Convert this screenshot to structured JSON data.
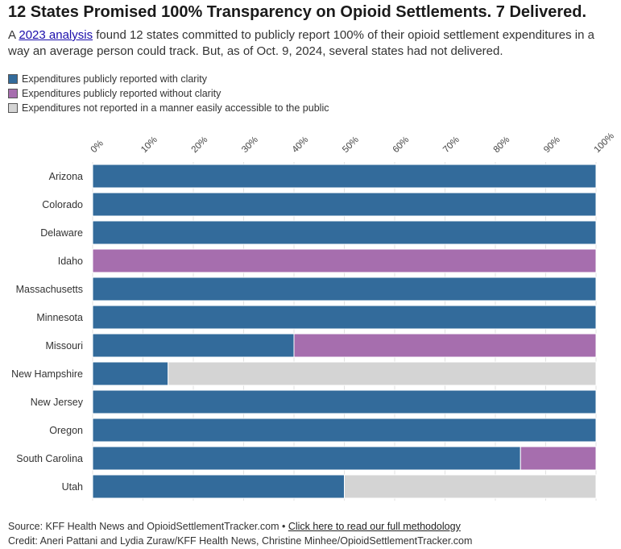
{
  "header": {
    "title": "12 States Promised 100% Transparency on Opioid Settlements. 7 Delivered.",
    "subtitle_before": "A ",
    "subtitle_link": "2023 analysis",
    "subtitle_after": " found 12 states committed to publicly report 100% of their opioid settlement expenditures in a way an average person could track. But, as of Oct. 9, 2024, several states had not delivered."
  },
  "legend": [
    {
      "label": "Expenditures publicly reported with clarity",
      "color": "#336b9b"
    },
    {
      "label": "Expenditures publicly reported without clarity",
      "color": "#a66eae"
    },
    {
      "label": "Expenditures not reported in a manner easily accessible to the public",
      "color": "#d4d4d4"
    }
  ],
  "chart_data": {
    "type": "bar",
    "orientation": "horizontal",
    "stacked": true,
    "x_axis_position": "top",
    "xlim": [
      0,
      100
    ],
    "x_ticks": [
      "0%",
      "10%",
      "20%",
      "30%",
      "40%",
      "50%",
      "60%",
      "70%",
      "80%",
      "90%",
      "100%"
    ],
    "categories": [
      "Arizona",
      "Colorado",
      "Delaware",
      "Idaho",
      "Massachusetts",
      "Minnesota",
      "Missouri",
      "New Hampshire",
      "New Jersey",
      "Oregon",
      "South Carolina",
      "Utah"
    ],
    "series": [
      {
        "name": "Expenditures publicly reported with clarity",
        "color": "#336b9b",
        "values": [
          100,
          100,
          100,
          0,
          100,
          100,
          40,
          15,
          100,
          100,
          85,
          50
        ]
      },
      {
        "name": "Expenditures publicly reported without clarity",
        "color": "#a66eae",
        "values": [
          0,
          0,
          0,
          100,
          0,
          0,
          60,
          0,
          0,
          0,
          15,
          0
        ]
      },
      {
        "name": "Expenditures not reported in a manner easily accessible to the public",
        "color": "#d4d4d4",
        "values": [
          0,
          0,
          0,
          0,
          0,
          0,
          0,
          85,
          0,
          0,
          0,
          50
        ]
      }
    ]
  },
  "footer": {
    "source_text": "Source: KFF Health News and OpioidSettlementTracker.com • ",
    "methodology_link": "Click here to read our full methodology",
    "credit": "Credit: Aneri Pattani and Lydia Zuraw/KFF Health News, Christine Minhee/OpioidSettlementTracker.com"
  }
}
